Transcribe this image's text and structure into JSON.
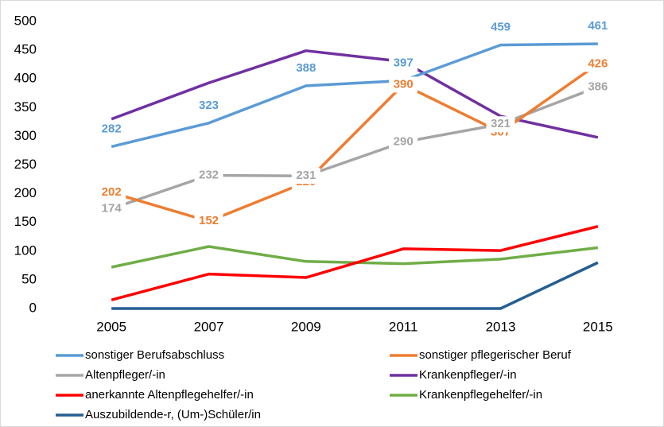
{
  "chart_data": {
    "type": "line",
    "categories": [
      "2005",
      "2007",
      "2009",
      "2011",
      "2013",
      "2015"
    ],
    "ylim": [
      0,
      500
    ],
    "yticks": [
      0,
      50,
      100,
      150,
      200,
      250,
      300,
      350,
      400,
      450,
      500
    ],
    "grid": false,
    "legend": "bottom",
    "series": [
      {
        "name": "sonstiger Berufsabschluss",
        "color": "#5b9bd5",
        "data_labels": true,
        "values": [
          282,
          323,
          388,
          397,
          459,
          461
        ]
      },
      {
        "name": "sonstiger pflegerischer Beruf",
        "color": "#ed7d31",
        "data_labels": true,
        "values": [
          202,
          152,
          220,
          390,
          307,
          426
        ]
      },
      {
        "name": "Altenpfleger/-in",
        "color": "#a5a5a5",
        "data_labels": true,
        "values": [
          174,
          232,
          231,
          290,
          321,
          386
        ]
      },
      {
        "name": "Krankenpfleger/-in",
        "color": "#7030a0",
        "data_labels": false,
        "values": [
          330,
          393,
          449,
          430,
          335,
          298
        ]
      },
      {
        "name": "anerkannte Altenpflegehelfer/-in",
        "color": "#ff0000",
        "data_labels": false,
        "values": [
          15,
          60,
          54,
          104,
          101,
          143
        ]
      },
      {
        "name": "Krankenpflegehelfer/-in",
        "color": "#70ad47",
        "data_labels": false,
        "values": [
          72,
          108,
          82,
          78,
          86,
          106
        ]
      },
      {
        "name": "Auszubildende-r, (Um-)Schüler/in",
        "color": "#255e91",
        "data_labels": false,
        "values": [
          0,
          0,
          0,
          0,
          0,
          80
        ]
      }
    ]
  }
}
